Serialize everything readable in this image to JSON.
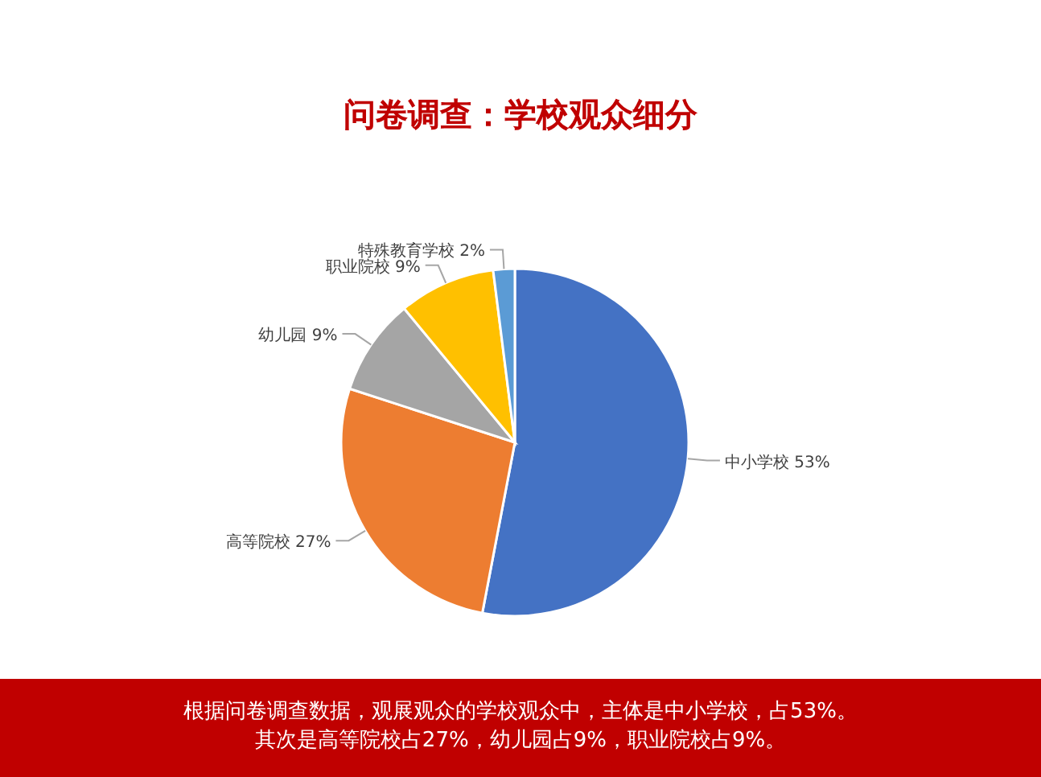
{
  "chart_data": {
    "type": "pie",
    "title": "问卷调查：学校观众细分",
    "categories": [
      "中小学校",
      "高等院校",
      "幼儿园",
      "职业院校",
      "特殊教育学校"
    ],
    "values": [
      53,
      27,
      9,
      9,
      2
    ],
    "value_labels": [
      "53%",
      "27%",
      "9%",
      "9%",
      "2%"
    ],
    "colors": [
      "#4472c4",
      "#ed7d31",
      "#a5a5a5",
      "#ffc000",
      "#5b9bd5"
    ],
    "legend": false,
    "annotations": [
      "根据问卷调查数据，观展观众的学校观众中，主体是中小学校，占53%。",
      "其次是高等院校占27%，幼儿园占9%，职业院校占9%。"
    ]
  }
}
